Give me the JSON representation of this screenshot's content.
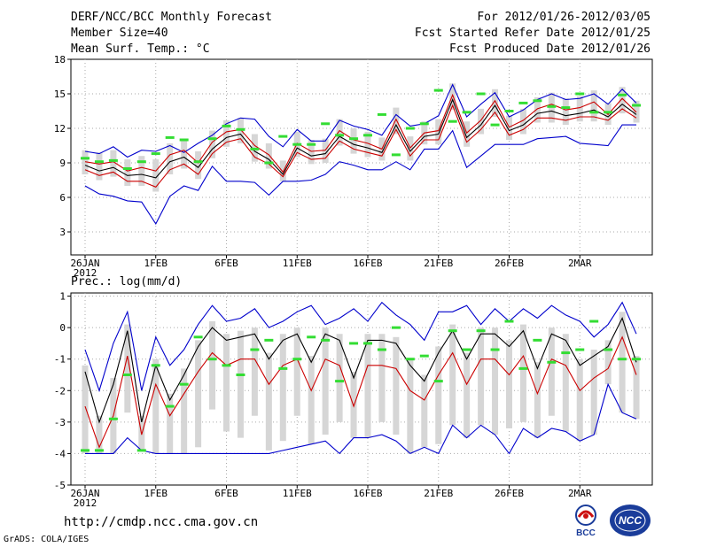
{
  "header": {
    "title": "DERF/NCC/BCC Monthly Forecast",
    "member_size": "Member Size=40",
    "variable": "Mean Surf. Temp.: °C",
    "period": "For 2012/01/26-2012/03/05",
    "started": "Fcst Started Refer Date 2012/01/25",
    "produced": "Fcst Produced Date 2012/01/26"
  },
  "footer": {
    "url": "http://cmdp.ncc.cma.gov.cn",
    "credit": "GrADS: COLA/IGES",
    "logo_bcc": "BCC",
    "logo_ncc": "NCC"
  },
  "colors": {
    "max_min": "#0000cc",
    "mean": "#000000",
    "inner": "#cc0000",
    "obs": "#33dd33",
    "box": "#d6d6d6"
  },
  "chart_data": [
    {
      "type": "line",
      "title": "Mean Surf. Temp.: °C",
      "ylim": [
        1,
        18
      ],
      "yticks": [
        3,
        6,
        9,
        12,
        15,
        18
      ],
      "xtick_labels": [
        "26JAN",
        "1FEB",
        "6FEB",
        "11FEB",
        "16FEB",
        "21FEB",
        "26FEB",
        "2MAR"
      ],
      "xtick_days": [
        0,
        5,
        10,
        15,
        20,
        25,
        30,
        35
      ],
      "year_label": "2012",
      "days": 40,
      "series": [
        {
          "name": "max",
          "values": [
            10.0,
            9.8,
            10.4,
            9.5,
            10.1,
            10.0,
            10.5,
            9.9,
            10.7,
            11.4,
            12.4,
            12.9,
            12.8,
            11.3,
            10.4,
            11.9,
            10.9,
            10.9,
            12.7,
            12.2,
            11.9,
            11.4,
            13.2,
            12.2,
            12.4,
            13.1,
            15.8,
            13.0,
            14.1,
            15.1,
            13.0,
            13.6,
            14.5,
            15.0,
            14.5,
            14.6,
            15.0,
            14.1,
            15.4,
            14.2
          ]
        },
        {
          "name": "inner_high",
          "values": [
            9.1,
            8.9,
            9.1,
            8.3,
            8.6,
            8.3,
            9.7,
            10.1,
            9.0,
            10.8,
            11.7,
            11.9,
            10.5,
            9.7,
            8.2,
            10.7,
            10.0,
            10.1,
            11.8,
            11.0,
            10.7,
            10.2,
            12.8,
            10.3,
            11.6,
            11.8,
            14.9,
            11.6,
            12.7,
            14.4,
            12.1,
            12.7,
            13.7,
            14.1,
            13.6,
            13.8,
            14.3,
            13.2,
            14.6,
            13.4
          ]
        },
        {
          "name": "mean",
          "values": [
            8.8,
            8.3,
            8.6,
            7.9,
            8.0,
            7.7,
            9.1,
            9.5,
            8.6,
            10.2,
            11.2,
            11.5,
            10.0,
            9.3,
            8.0,
            10.3,
            9.6,
            9.8,
            11.3,
            10.6,
            10.3,
            9.9,
            12.3,
            10.0,
            11.3,
            11.5,
            14.5,
            11.2,
            12.3,
            14.0,
            11.8,
            12.3,
            13.3,
            13.5,
            13.1,
            13.3,
            13.6,
            13.0,
            14.1,
            13.2
          ]
        },
        {
          "name": "inner_low",
          "values": [
            8.4,
            7.9,
            8.2,
            7.4,
            7.4,
            6.9,
            8.4,
            8.9,
            8.0,
            9.8,
            10.8,
            11.1,
            9.5,
            8.9,
            7.8,
            9.9,
            9.3,
            9.4,
            10.9,
            10.2,
            9.9,
            9.6,
            11.9,
            9.6,
            11.0,
            11.0,
            14.0,
            10.8,
            11.9,
            13.4,
            11.4,
            11.9,
            12.9,
            12.9,
            12.7,
            13.0,
            13.0,
            12.7,
            13.7,
            12.9
          ]
        },
        {
          "name": "min",
          "values": [
            7.0,
            6.3,
            6.1,
            5.7,
            5.6,
            3.7,
            6.1,
            7.0,
            6.6,
            8.7,
            7.4,
            7.4,
            7.3,
            6.2,
            7.4,
            7.4,
            7.5,
            8.0,
            9.1,
            8.8,
            8.4,
            8.4,
            9.1,
            8.4,
            10.2,
            10.2,
            11.8,
            8.6,
            9.6,
            10.6,
            10.6,
            10.6,
            11.1,
            11.2,
            11.3,
            10.7,
            10.6,
            10.5,
            12.3,
            12.3
          ]
        },
        {
          "name": "observed",
          "values": [
            9.4,
            9.1,
            9.2,
            8.5,
            9.1,
            9.8,
            11.2,
            11.0,
            9.1,
            11.1,
            12.2,
            11.9,
            10.2,
            9.0,
            11.3,
            10.6,
            10.6,
            12.4,
            11.4,
            11.1,
            11.4,
            13.2,
            9.7,
            12.0,
            12.4,
            15.3,
            12.6,
            13.4,
            15.0,
            12.3,
            13.5,
            14.2,
            14.4,
            13.9,
            13.8,
            15.0,
            13.4,
            13.4,
            14.9,
            14.0
          ]
        }
      ]
    },
    {
      "type": "line",
      "title": "Prec.: log(mm/d)",
      "ylim": [
        -5,
        1.1
      ],
      "yticks": [
        -5,
        -4,
        -3,
        -2,
        -1,
        0,
        1
      ],
      "xtick_labels": [
        "26JAN",
        "1FEB",
        "6FEB",
        "11FEB",
        "16FEB",
        "21FEB",
        "26FEB",
        "2MAR"
      ],
      "xtick_days": [
        0,
        5,
        10,
        15,
        20,
        25,
        30,
        35
      ],
      "year_label": "2012",
      "days": 40,
      "series": [
        {
          "name": "max",
          "values": [
            -0.7,
            -2.0,
            -0.5,
            0.5,
            -2.0,
            -0.3,
            -1.2,
            -0.7,
            0.1,
            0.7,
            0.2,
            0.3,
            0.6,
            0.0,
            0.2,
            0.5,
            0.7,
            0.1,
            0.3,
            0.6,
            0.2,
            0.8,
            0.4,
            0.1,
            -0.4,
            0.5,
            0.5,
            0.7,
            0.1,
            0.6,
            0.2,
            0.6,
            0.3,
            0.7,
            0.4,
            0.2,
            -0.3,
            0.1,
            0.8,
            -0.2
          ]
        },
        {
          "name": "mean",
          "values": [
            -1.4,
            -3.0,
            -1.8,
            -0.1,
            -3.0,
            -1.2,
            -2.3,
            -1.5,
            -0.6,
            0.0,
            -0.4,
            -0.3,
            -0.2,
            -1.0,
            -0.4,
            -0.2,
            -1.1,
            -0.2,
            -0.4,
            -1.6,
            -0.4,
            -0.4,
            -0.5,
            -1.2,
            -1.7,
            -0.8,
            -0.1,
            -1.0,
            -0.2,
            -0.2,
            -0.6,
            -0.1,
            -1.3,
            -0.2,
            -0.4,
            -1.2,
            -0.9,
            -0.6,
            0.3,
            -1.1
          ]
        },
        {
          "name": "inner_low",
          "values": [
            -2.5,
            -3.8,
            -2.8,
            -0.9,
            -3.4,
            -1.8,
            -2.8,
            -2.1,
            -1.4,
            -0.8,
            -1.2,
            -1.0,
            -1.0,
            -1.8,
            -1.2,
            -1.0,
            -2.0,
            -1.0,
            -1.2,
            -2.5,
            -1.2,
            -1.2,
            -1.3,
            -2.0,
            -2.3,
            -1.5,
            -0.8,
            -1.8,
            -1.0,
            -1.0,
            -1.5,
            -0.9,
            -2.1,
            -1.0,
            -1.2,
            -2.0,
            -1.6,
            -1.3,
            -0.3,
            -1.5
          ]
        },
        {
          "name": "min",
          "values": [
            -4.0,
            -4.0,
            -4.0,
            -3.5,
            -3.9,
            -4.0,
            -4.0,
            -4.0,
            -4.0,
            -4.0,
            -4.0,
            -4.0,
            -4.0,
            -4.0,
            -3.9,
            -3.8,
            -3.7,
            -3.6,
            -4.0,
            -3.5,
            -3.5,
            -3.4,
            -3.6,
            -4.0,
            -3.8,
            -4.0,
            -3.1,
            -3.5,
            -3.1,
            -3.4,
            -4.0,
            -3.2,
            -3.5,
            -3.2,
            -3.3,
            -3.6,
            -3.4,
            -1.8,
            -2.7,
            -2.9
          ]
        },
        {
          "name": "observed",
          "values": [
            -3.9,
            -3.9,
            -2.9,
            -1.5,
            -3.9,
            -1.2,
            -2.5,
            -1.8,
            -0.3,
            -1.0,
            -1.2,
            -1.5,
            -0.7,
            -0.4,
            -1.3,
            -1.0,
            -0.3,
            -0.4,
            -1.7,
            -0.5,
            -0.5,
            -0.7,
            0.0,
            -1.0,
            -0.9,
            -1.7,
            -0.1,
            -0.7,
            -0.1,
            -0.7,
            0.2,
            -1.3,
            -0.4,
            -1.1,
            -0.8,
            -0.7,
            0.2,
            -0.7,
            -1.0,
            -1.0
          ]
        }
      ]
    }
  ]
}
